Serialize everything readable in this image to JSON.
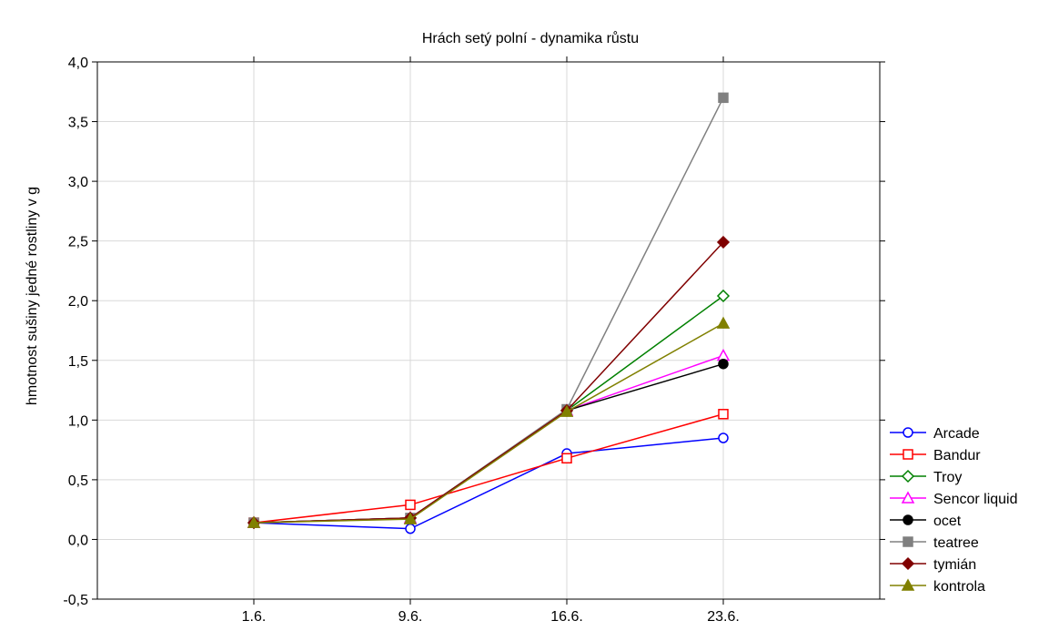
{
  "chart_data": {
    "type": "line",
    "title": "Hrách setý polní - dynamika růstu",
    "ylabel": "hmotnost sušiny jedné rostliny v g",
    "xlabel": "",
    "categories": [
      "1.6.",
      "9.6.",
      "16.6.",
      "23.6."
    ],
    "ylim": [
      -0.5,
      4.0
    ],
    "yticks": [
      "-0,5",
      "0,0",
      "0,5",
      "1,0",
      "1,5",
      "2,0",
      "2,5",
      "3,0",
      "3,5",
      "4,0"
    ],
    "grid": true,
    "legend_position": "right",
    "series": [
      {
        "name": "Arcade",
        "color": "#0000ff",
        "marker": "circle-open",
        "values": [
          0.14,
          0.09,
          0.72,
          0.85
        ]
      },
      {
        "name": "Bandur",
        "color": "#ff0000",
        "marker": "square-open",
        "values": [
          0.14,
          0.29,
          0.68,
          1.05
        ]
      },
      {
        "name": "Troy",
        "color": "#008000",
        "marker": "diamond-open",
        "values": [
          0.14,
          0.18,
          1.08,
          2.04
        ]
      },
      {
        "name": "Sencor liquid",
        "color": "#ff00ff",
        "marker": "triangle-open",
        "values": [
          0.14,
          0.18,
          1.08,
          1.54
        ]
      },
      {
        "name": "ocet",
        "color": "#000000",
        "marker": "circle-filled",
        "values": [
          0.14,
          0.18,
          1.08,
          1.47
        ]
      },
      {
        "name": "teatree",
        "color": "#808080",
        "marker": "square-filled",
        "values": [
          0.14,
          0.18,
          1.09,
          3.7
        ]
      },
      {
        "name": "tymián",
        "color": "#800000",
        "marker": "diamond-filled",
        "values": [
          0.14,
          0.18,
          1.08,
          2.49
        ]
      },
      {
        "name": "kontrola",
        "color": "#808000",
        "marker": "triangle-filled",
        "values": [
          0.14,
          0.17,
          1.07,
          1.81
        ]
      }
    ]
  }
}
